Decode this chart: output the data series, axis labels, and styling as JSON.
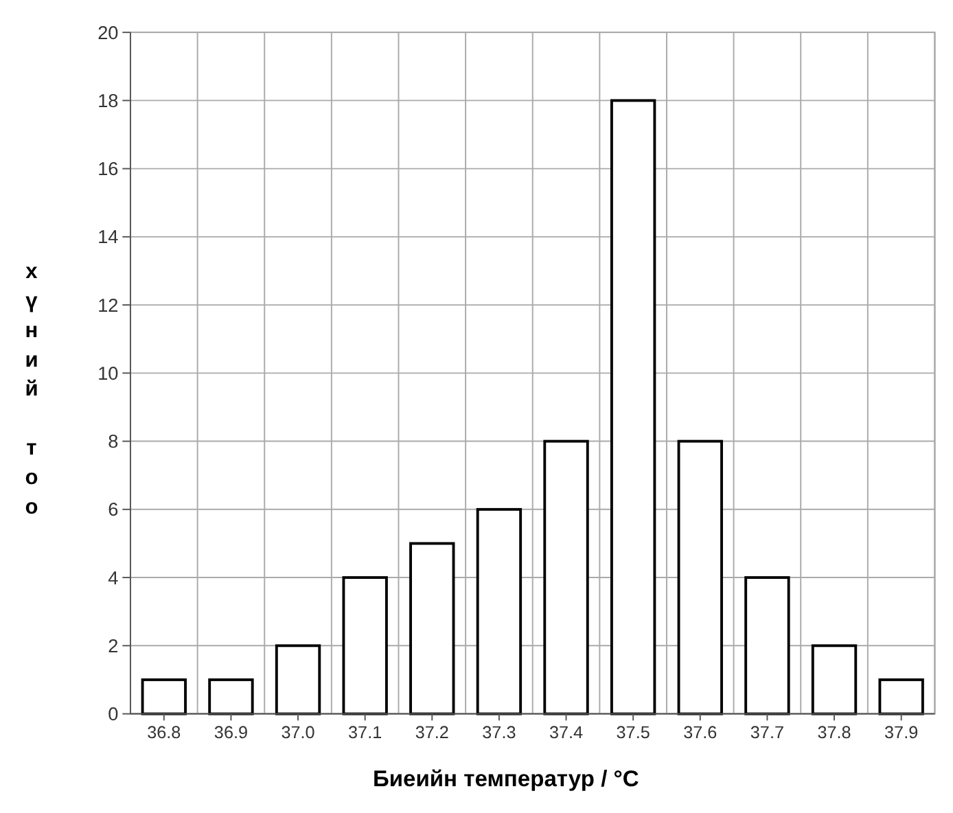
{
  "chart_data": {
    "type": "bar",
    "xlabel": "Биеийн температур / °C",
    "ylabel": "хүний тоо",
    "categories": [
      "36.8",
      "36.9",
      "37.0",
      "37.1",
      "37.2",
      "37.3",
      "37.4",
      "37.5",
      "37.6",
      "37.7",
      "37.8",
      "37.9"
    ],
    "values": [
      1,
      1,
      2,
      4,
      5,
      6,
      8,
      18,
      8,
      4,
      2,
      1
    ],
    "color": "#ffffff",
    "ylim": [
      0,
      20
    ],
    "yticks": [
      0,
      2,
      4,
      6,
      8,
      10,
      12,
      14,
      16,
      18,
      20
    ],
    "grid": true
  }
}
